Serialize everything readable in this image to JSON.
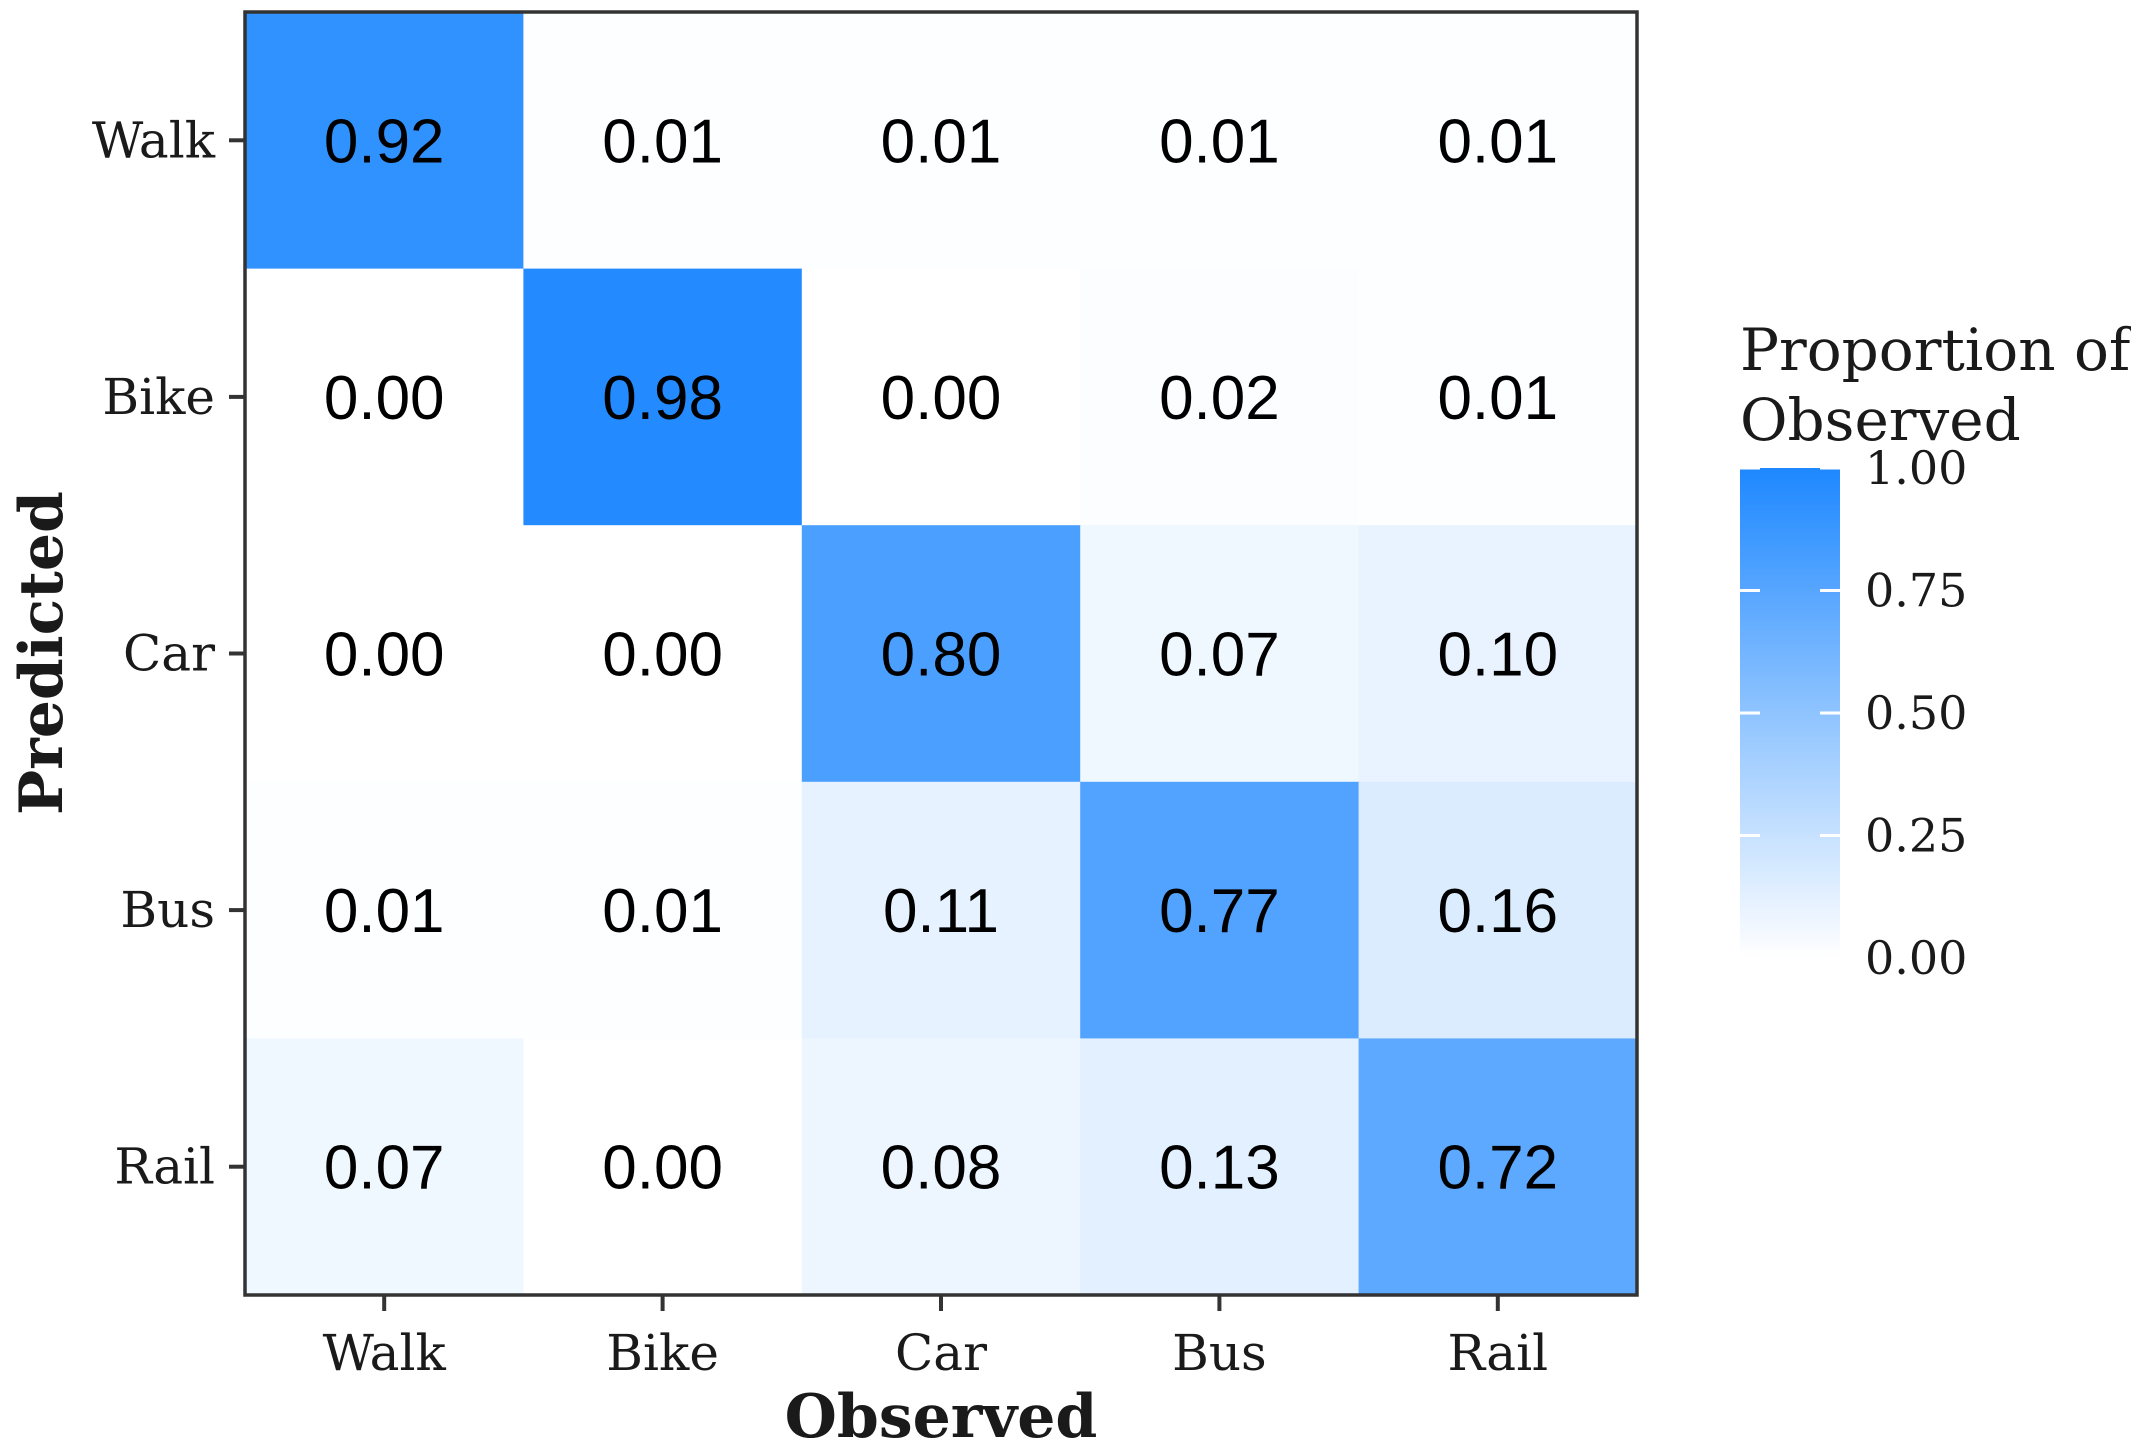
{
  "chart_data": {
    "type": "heatmap",
    "title": "",
    "xlabel": "Observed",
    "ylabel": "Predicted",
    "x_categories": [
      "Walk",
      "Bike",
      "Car",
      "Bus",
      "Rail"
    ],
    "y_categories": [
      "Walk",
      "Bike",
      "Car",
      "Bus",
      "Rail"
    ],
    "values": [
      [
        0.92,
        0.01,
        0.01,
        0.01,
        0.01
      ],
      [
        0.0,
        0.98,
        0.0,
        0.02,
        0.01
      ],
      [
        0.0,
        0.0,
        0.8,
        0.07,
        0.1
      ],
      [
        0.01,
        0.01,
        0.11,
        0.77,
        0.16
      ],
      [
        0.07,
        0.0,
        0.08,
        0.13,
        0.72
      ]
    ],
    "labels": [
      [
        "0.92",
        "0.01",
        "0.01",
        "0.01",
        "0.01"
      ],
      [
        "0.00",
        "0.98",
        "0.00",
        "0.02",
        "0.01"
      ],
      [
        "0.00",
        "0.00",
        "0.80",
        "0.07",
        "0.10"
      ],
      [
        "0.01",
        "0.01",
        "0.11",
        "0.77",
        "0.16"
      ],
      [
        "0.07",
        "0.00",
        "0.08",
        "0.13",
        "0.72"
      ]
    ],
    "color_range": [
      0,
      1
    ],
    "color_low": "#ffffff",
    "color_high": "#1e88ff",
    "legend": {
      "title_line1": "Proportion of",
      "title_line2": "Observed",
      "ticks": [
        1.0,
        0.75,
        0.5,
        0.25,
        0.0
      ],
      "tick_labels": [
        "1.00",
        "0.75",
        "0.50",
        "0.25",
        "0.00"
      ],
      "position": "right"
    }
  }
}
